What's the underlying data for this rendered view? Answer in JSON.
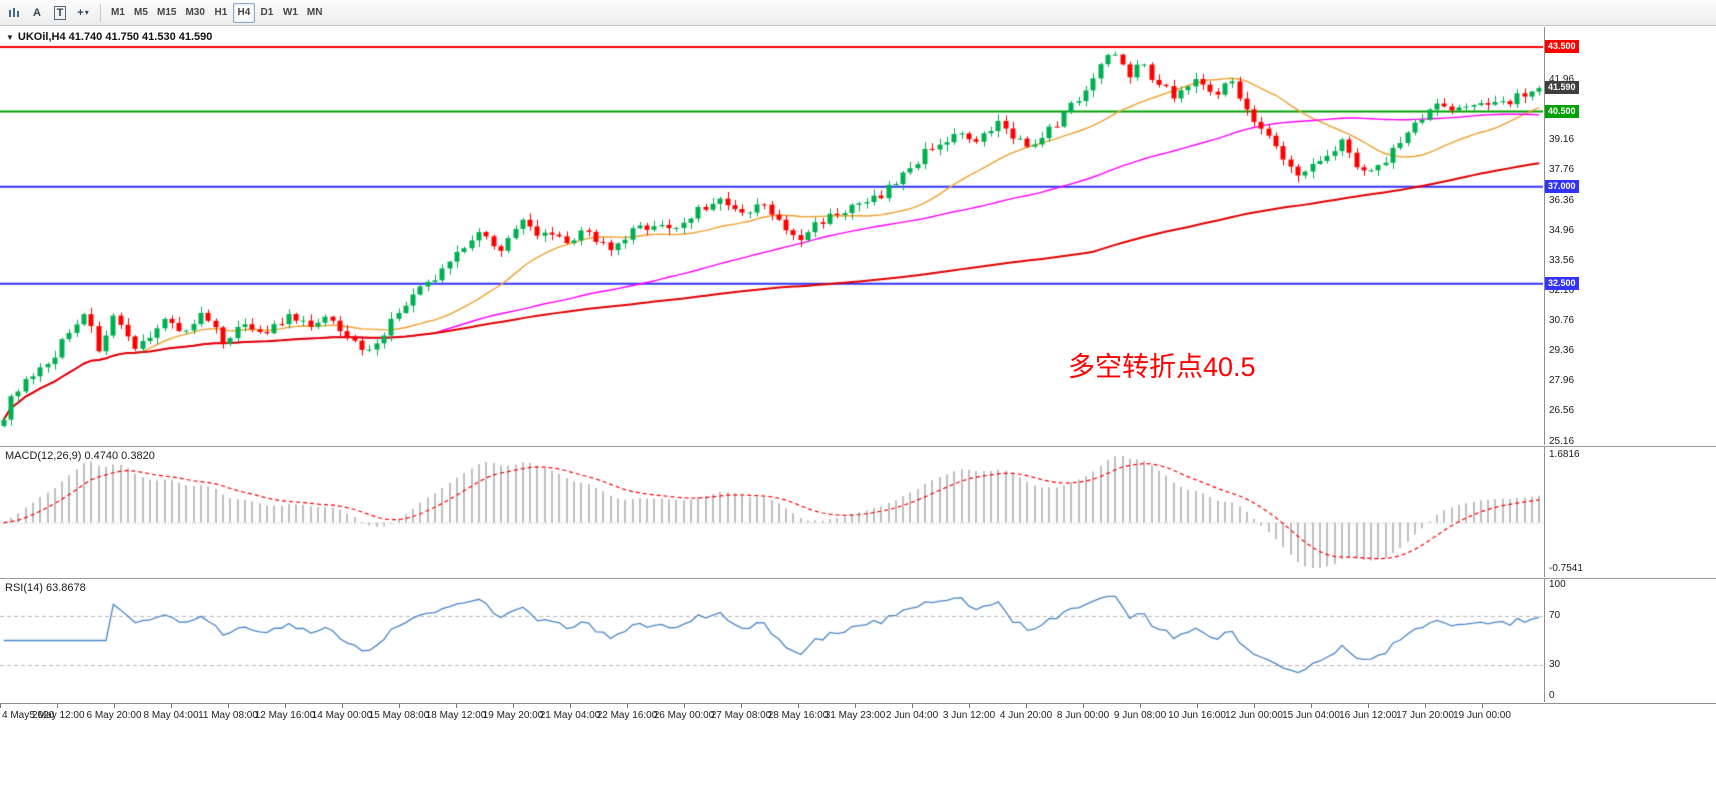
{
  "toolbar": {
    "text_tool_label": "A",
    "textbox_tool_label": "T",
    "draw_tool_label": "+",
    "timeframes": [
      "M1",
      "M5",
      "M15",
      "M30",
      "H1",
      "H4",
      "D1",
      "W1",
      "MN"
    ],
    "selected_timeframe": "H4"
  },
  "chart": {
    "title": "UKOil,H4 41.740 41.750 41.530 41.590",
    "annotation": {
      "text": "多空转折点40.5",
      "color": "#FF0000"
    }
  },
  "chart_data": {
    "type": "candlestick",
    "symbol": "UKOil",
    "timeframe": "H4",
    "ohlc_display": {
      "open": "41.740",
      "high": "41.750",
      "low": "41.530",
      "close": "41.590"
    },
    "bars": 211,
    "y_range": [
      25.0,
      44.43
    ],
    "y_ticks": [
      "41.96",
      "39.16",
      "37.76",
      "36.36",
      "34.96",
      "33.56",
      "32.16",
      "30.76",
      "29.36",
      "27.96",
      "26.56",
      "25.16"
    ],
    "price_lines": [
      {
        "price": 43.5,
        "label": "43.500",
        "color": "#FF0000"
      },
      {
        "price": 40.5,
        "label": "40.500",
        "color": "#00A000"
      },
      {
        "price": 37.0,
        "label": "37.000",
        "color": "#3333FF"
      },
      {
        "price": 32.5,
        "label": "32.500",
        "color": "#3333FF"
      }
    ],
    "current_price": {
      "value": 41.59,
      "label": "41.590",
      "badge_color": "#3F3F3F"
    },
    "candle_colors": {
      "up": "#00B050",
      "down": "#FF0000"
    },
    "moving_averages": [
      {
        "period": 20,
        "color": "#F0A030"
      },
      {
        "period": 60,
        "color": "#FF00FF"
      },
      {
        "period": 150,
        "color": "#E00000"
      }
    ],
    "close_waypoints": [
      [
        0,
        26.4
      ],
      [
        2,
        27.7
      ],
      [
        4,
        28.1
      ],
      [
        6,
        28.7
      ],
      [
        8,
        29.8
      ],
      [
        11,
        31.2
      ],
      [
        13,
        29.5
      ],
      [
        15,
        30.9
      ],
      [
        18,
        29.3
      ],
      [
        20,
        30.2
      ],
      [
        22,
        30.8
      ],
      [
        25,
        30.3
      ],
      [
        27,
        31.0
      ],
      [
        30,
        29.9
      ],
      [
        33,
        30.6
      ],
      [
        36,
        30.3
      ],
      [
        39,
        30.9
      ],
      [
        42,
        30.5
      ],
      [
        45,
        30.9
      ],
      [
        48,
        29.7
      ],
      [
        50,
        29.4
      ],
      [
        53,
        30.7
      ],
      [
        56,
        32.0
      ],
      [
        59,
        32.7
      ],
      [
        62,
        34.0
      ],
      [
        65,
        34.9
      ],
      [
        68,
        34.2
      ],
      [
        71,
        35.3
      ],
      [
        74,
        34.7
      ],
      [
        77,
        34.4
      ],
      [
        80,
        35.0
      ],
      [
        83,
        33.9
      ],
      [
        86,
        34.9
      ],
      [
        89,
        35.3
      ],
      [
        92,
        35.0
      ],
      [
        95,
        36.0
      ],
      [
        98,
        36.3
      ],
      [
        101,
        35.7
      ],
      [
        104,
        36.2
      ],
      [
        107,
        34.9
      ],
      [
        109,
        34.6
      ],
      [
        112,
        35.5
      ],
      [
        115,
        35.9
      ],
      [
        118,
        36.2
      ],
      [
        121,
        36.9
      ],
      [
        124,
        37.9
      ],
      [
        127,
        38.9
      ],
      [
        130,
        39.4
      ],
      [
        133,
        39.0
      ],
      [
        136,
        39.9
      ],
      [
        139,
        39.2
      ],
      [
        141,
        38.8
      ],
      [
        144,
        40.0
      ],
      [
        147,
        41.1
      ],
      [
        150,
        42.7
      ],
      [
        152,
        43.3
      ],
      [
        154,
        42.3
      ],
      [
        155,
        42.9
      ],
      [
        157,
        42.1
      ],
      [
        160,
        41.3
      ],
      [
        163,
        41.9
      ],
      [
        166,
        41.5
      ],
      [
        168,
        41.8
      ],
      [
        171,
        40.2
      ],
      [
        174,
        38.8
      ],
      [
        177,
        37.4
      ],
      [
        180,
        38.4
      ],
      [
        183,
        39.1
      ],
      [
        185,
        38.1
      ],
      [
        187,
        37.6
      ],
      [
        190,
        38.7
      ],
      [
        193,
        40.0
      ],
      [
        196,
        40.8
      ],
      [
        199,
        40.5
      ],
      [
        202,
        41.1
      ],
      [
        205,
        40.9
      ],
      [
        208,
        41.3
      ],
      [
        210,
        41.59
      ]
    ],
    "x_labels": [
      "4 May 2020",
      "5 May 12:00",
      "6 May 20:00",
      "8 May 04:00",
      "11 May 08:00",
      "12 May 16:00",
      "14 May 00:00",
      "15 May 08:00",
      "18 May 12:00",
      "19 May 20:00",
      "21 May 04:00",
      "22 May 16:00",
      "26 May 00:00",
      "27 May 08:00",
      "28 May 16:00",
      "31 May 23:00",
      "2 Jun 04:00",
      "3 Jun 12:00",
      "4 Jun 20:00",
      "8 Jun 00:00",
      "9 Jun 08:00",
      "10 Jun 16:00",
      "12 Jun 00:00",
      "15 Jun 04:00",
      "16 Jun 12:00",
      "17 Jun 20:00",
      "19 Jun 00:00"
    ],
    "macd": {
      "label": "MACD(12,26,9)",
      "values": "0.4740 0.3820",
      "fast": 12,
      "slow": 26,
      "signal_period": 9,
      "axis_top": "1.6816",
      "axis_bottom": "-0.7541",
      "histogram_color": "#BFBFBF",
      "signal_color": "#FF0000"
    },
    "rsi": {
      "label": "RSI(14)",
      "value": "63.8678",
      "period": 14,
      "axis": [
        "100",
        "70",
        "30",
        "0"
      ],
      "levels": [
        70,
        30
      ],
      "line_color": "#4A86C8"
    }
  }
}
